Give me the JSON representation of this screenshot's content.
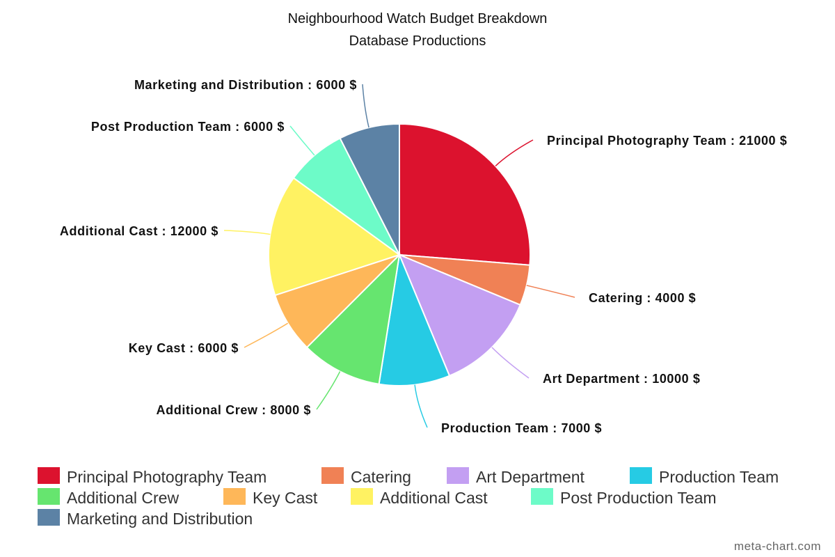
{
  "chart_data": {
    "type": "pie",
    "title": "Neighbourhood Watch Budget Breakdown",
    "subtitle": "Database Productions",
    "unit": "$",
    "slices": [
      {
        "name": "Principal Photography Team",
        "value": 21000,
        "color": "#dc122e"
      },
      {
        "name": "Catering",
        "value": 4000,
        "color": "#f08155"
      },
      {
        "name": "Art Department",
        "value": 10000,
        "color": "#c39ff2"
      },
      {
        "name": "Production Team",
        "value": 7000,
        "color": "#26cbe4"
      },
      {
        "name": "Additional Crew",
        "value": 8000,
        "color": "#66e56f"
      },
      {
        "name": "Key Cast",
        "value": 6000,
        "color": "#feb759"
      },
      {
        "name": "Additional Cast",
        "value": 12000,
        "color": "#fff262"
      },
      {
        "name": "Post Production Team",
        "value": 6000,
        "color": "#6dfbc8"
      },
      {
        "name": "Marketing and Distribution",
        "value": 6000,
        "color": "#5c82a5"
      }
    ],
    "legend_position": "bottom"
  },
  "credit": "meta-chart.com"
}
